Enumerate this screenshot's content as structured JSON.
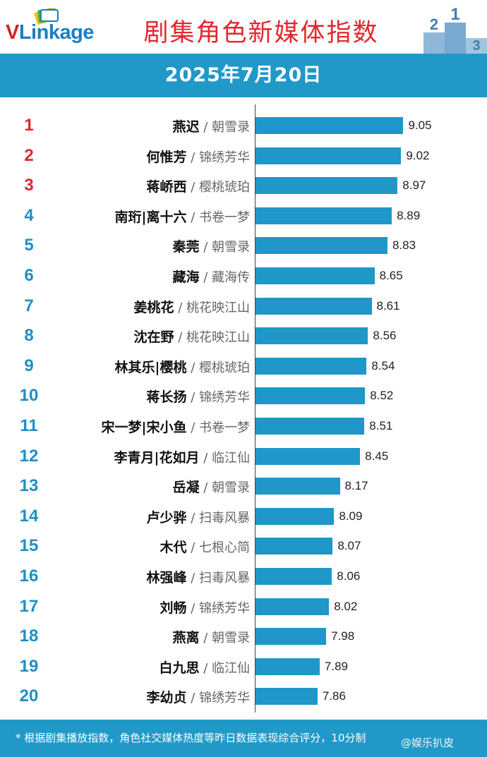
{
  "header": {
    "logo_text_v": "V",
    "logo_text_rest": "Link",
    "logo_text_tail": "age",
    "title": "剧集角色新媒体指数",
    "podium_digits": [
      "2",
      "1",
      "3"
    ]
  },
  "date": "2025年7月20日",
  "colors": {
    "top_rank": "#e4262d",
    "other_rank": "#1f8fc4",
    "bar": "#1f97c8",
    "banner": "#2099c9"
  },
  "chart_data": {
    "type": "bar",
    "orientation": "horizontal",
    "xlim": [
      7.0,
      9.3
    ],
    "categories": [
      "1",
      "2",
      "3",
      "4",
      "5",
      "6",
      "7",
      "8",
      "9",
      "10",
      "11",
      "12",
      "13",
      "14",
      "15",
      "16",
      "17",
      "18",
      "19",
      "20"
    ],
    "rows": [
      {
        "rank": "1",
        "name": "燕迟",
        "drama": "朝雪录",
        "value": 9.05
      },
      {
        "rank": "2",
        "name": "何惟芳",
        "drama": "锦绣芳华",
        "value": 9.02
      },
      {
        "rank": "3",
        "name": "蒋峤西",
        "drama": "樱桃琥珀",
        "value": 8.97
      },
      {
        "rank": "4",
        "name": "南珩|离十六",
        "drama": "书卷一梦",
        "value": 8.89
      },
      {
        "rank": "5",
        "name": "秦莞",
        "drama": "朝雪录",
        "value": 8.83
      },
      {
        "rank": "6",
        "name": "藏海",
        "drama": "藏海传",
        "value": 8.65
      },
      {
        "rank": "7",
        "name": "姜桃花",
        "drama": "桃花映江山",
        "value": 8.61
      },
      {
        "rank": "8",
        "name": "沈在野",
        "drama": "桃花映江山",
        "value": 8.56
      },
      {
        "rank": "9",
        "name": "林其乐|樱桃",
        "drama": "樱桃琥珀",
        "value": 8.54
      },
      {
        "rank": "10",
        "name": "蒋长扬",
        "drama": "锦绣芳华",
        "value": 8.52
      },
      {
        "rank": "11",
        "name": "宋一梦|宋小鱼",
        "drama": "书卷一梦",
        "value": 8.51
      },
      {
        "rank": "12",
        "name": "李青月|花如月",
        "drama": "临江仙",
        "value": 8.45
      },
      {
        "rank": "13",
        "name": "岳凝",
        "drama": "朝雪录",
        "value": 8.17
      },
      {
        "rank": "14",
        "name": "卢少骅",
        "drama": "扫毒风暴",
        "value": 8.09
      },
      {
        "rank": "15",
        "name": "木代",
        "drama": "七根心简",
        "value": 8.07
      },
      {
        "rank": "16",
        "name": "林强峰",
        "drama": "扫毒风暴",
        "value": 8.06
      },
      {
        "rank": "17",
        "name": "刘畅",
        "drama": "锦绣芳华",
        "value": 8.02
      },
      {
        "rank": "18",
        "name": "燕离",
        "drama": "朝雪录",
        "value": 7.98
      },
      {
        "rank": "19",
        "name": "白九思",
        "drama": "临江仙",
        "value": 7.89
      },
      {
        "rank": "20",
        "name": "李幼贞",
        "drama": "锦绣芳华",
        "value": 7.86
      }
    ]
  },
  "footnote": "* 根据剧集播放指数，角色社交媒体热度等昨日数据表现综合评分，10分制",
  "watermark": "@娱乐扒皮"
}
